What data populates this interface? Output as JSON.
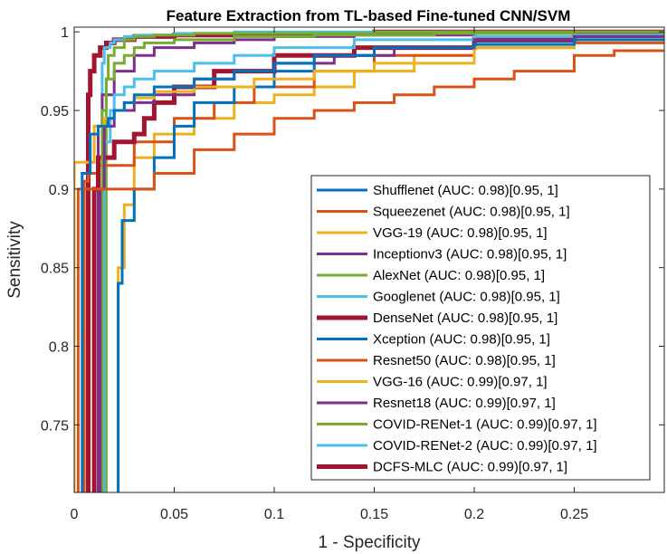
{
  "chart_data": {
    "type": "line",
    "title": "Feature Extraction from TL-based Fine-tuned CNN/SVM",
    "xlabel": "1 - Specificity",
    "ylabel": "Sensitivity",
    "xlim": [
      0,
      0.295
    ],
    "ylim": [
      0.707,
      1.003
    ],
    "xticks": [
      0,
      0.05,
      0.1,
      0.15,
      0.2,
      0.25
    ],
    "xtick_labels": [
      "0",
      "0.05",
      "0.1",
      "0.15",
      "0.2",
      "0.25"
    ],
    "yticks": [
      0.75,
      0.8,
      0.85,
      0.9,
      0.95,
      1
    ],
    "ytick_labels": [
      "0.75",
      "0.8",
      "0.85",
      "0.9",
      "0.95",
      "1"
    ],
    "grid": false,
    "legend_position": "bottom-right",
    "series": [
      {
        "name": "Shufflenet (AUC: 0.98)[0.95, 1]",
        "color": "#0072BD",
        "x": [
          0.004,
          0.008,
          0.012,
          0.017,
          0.02,
          0.025,
          0.03,
          0.04,
          0.06,
          0.08,
          0.1,
          0.12,
          0.15,
          0.2,
          0.25,
          0.295
        ],
        "y": [
          0.707,
          0.91,
          0.935,
          0.94,
          0.945,
          0.95,
          0.955,
          0.96,
          0.965,
          0.97,
          0.975,
          0.98,
          0.985,
          0.99,
          0.992,
          0.995
        ]
      },
      {
        "name": "Squeezenet (AUC: 0.98)[0.95, 1]",
        "color": "#D95319",
        "x": [
          0.002,
          0.002,
          0.04,
          0.06,
          0.08,
          0.1,
          0.12,
          0.14,
          0.16,
          0.18,
          0.2,
          0.22,
          0.25,
          0.27,
          0.295
        ],
        "y": [
          0.707,
          0.9,
          0.9,
          0.91,
          0.925,
          0.935,
          0.945,
          0.95,
          0.955,
          0.96,
          0.965,
          0.97,
          0.975,
          0.985,
          0.988
        ]
      },
      {
        "name": "VGG-19 (AUC: 0.98)[0.95, 1]",
        "color": "#EDB120",
        "x": [
          0,
          0.0,
          0.01,
          0.01,
          0.015,
          0.02,
          0.025,
          0.03,
          0.04,
          0.06,
          0.09,
          0.12,
          0.15,
          0.2,
          0.25,
          0.295
        ],
        "y": [
          0.707,
          0.915,
          0.917,
          0.93,
          0.94,
          0.945,
          0.95,
          0.955,
          0.958,
          0.962,
          0.965,
          0.97,
          0.975,
          0.98,
          0.99,
          0.995
        ]
      },
      {
        "name": "Inceptionv3 (AUC: 0.98)[0.95, 1]",
        "color": "#7E2F8E",
        "x": [
          0.013,
          0.015,
          0.02,
          0.03,
          0.04,
          0.06,
          0.08,
          0.1,
          0.13,
          0.16,
          0.2,
          0.25,
          0.295
        ],
        "y": [
          0.707,
          0.9,
          0.94,
          0.95,
          0.955,
          0.96,
          0.97,
          0.975,
          0.98,
          0.985,
          0.99,
          0.995,
          0.997
        ]
      },
      {
        "name": "AlexNet (AUC: 0.98)[0.95, 1]",
        "color": "#77AC30",
        "x": [
          0.014,
          0.016,
          0.02,
          0.025,
          0.03,
          0.035,
          0.05,
          0.08,
          0.12,
          0.18,
          0.25,
          0.295
        ],
        "y": [
          0.707,
          0.95,
          0.97,
          0.98,
          0.985,
          0.99,
          0.993,
          0.995,
          0.997,
          0.998,
          0.999,
          1.0
        ]
      },
      {
        "name": "Googlenet (AUC: 0.98)[0.95, 1]",
        "color": "#4DBEEE",
        "x": [
          0.015,
          0.018,
          0.02,
          0.025,
          0.03,
          0.04,
          0.06,
          0.08,
          0.1,
          0.14,
          0.2,
          0.25,
          0.295
        ],
        "y": [
          0.707,
          0.93,
          0.95,
          0.96,
          0.965,
          0.97,
          0.975,
          0.98,
          0.985,
          0.99,
          0.995,
          0.997,
          0.998
        ]
      },
      {
        "name": "DenseNet (AUC: 0.98)[0.95, 1]",
        "color": "#A2142F",
        "x": [
          0.01,
          0.012,
          0.02,
          0.03,
          0.035,
          0.04,
          0.05,
          0.07,
          0.1,
          0.14,
          0.2,
          0.25,
          0.295
        ],
        "y": [
          0.707,
          0.9,
          0.92,
          0.93,
          0.935,
          0.945,
          0.955,
          0.965,
          0.975,
          0.985,
          0.99,
          0.995,
          0.998
        ]
      },
      {
        "name": "Xception (AUC: 0.98)[0.95, 1]",
        "color": "#0072BD",
        "x": [
          0.022,
          0.024,
          0.03,
          0.04,
          0.05,
          0.06,
          0.08,
          0.1,
          0.12,
          0.15,
          0.2,
          0.25,
          0.295
        ],
        "y": [
          0.707,
          0.84,
          0.88,
          0.9,
          0.92,
          0.94,
          0.955,
          0.965,
          0.975,
          0.985,
          0.99,
          0.994,
          0.997
        ]
      },
      {
        "name": "Resnet50 (AUC: 0.98)[0.95, 1]",
        "color": "#D95319",
        "x": [
          0.005,
          0.007,
          0.012,
          0.03,
          0.05,
          0.07,
          0.09,
          0.12,
          0.15,
          0.2,
          0.25,
          0.295
        ],
        "y": [
          0.707,
          0.905,
          0.91,
          0.915,
          0.93,
          0.945,
          0.955,
          0.965,
          0.975,
          0.985,
          0.99,
          0.993
        ]
      },
      {
        "name": "VGG-16 (AUC: 0.99)[0.97, 1]",
        "color": "#EDB120",
        "x": [
          0.022,
          0.025,
          0.03,
          0.04,
          0.06,
          0.08,
          0.1,
          0.12,
          0.14,
          0.17,
          0.2,
          0.25,
          0.295
        ],
        "y": [
          0.707,
          0.85,
          0.89,
          0.92,
          0.935,
          0.945,
          0.955,
          0.96,
          0.965,
          0.975,
          0.985,
          0.99,
          0.995
        ]
      },
      {
        "name": "Resnet18 (AUC: 0.99)[0.97, 1]",
        "color": "#7E2F8E",
        "x": [
          0.012,
          0.014,
          0.02,
          0.03,
          0.04,
          0.06,
          0.08,
          0.1,
          0.14,
          0.2,
          0.25,
          0.295
        ],
        "y": [
          0.707,
          0.94,
          0.96,
          0.975,
          0.985,
          0.99,
          0.993,
          0.995,
          0.997,
          0.998,
          0.999,
          1.0
        ]
      },
      {
        "name": "COVID-RENet-1 (AUC: 0.99)[0.97, 1]",
        "color": "#77AC30",
        "x": [
          0.016,
          0.017,
          0.02,
          0.025,
          0.03,
          0.04,
          0.06,
          0.1,
          0.15,
          0.2,
          0.25,
          0.295
        ],
        "y": [
          0.707,
          0.97,
          0.985,
          0.99,
          0.995,
          0.997,
          0.998,
          0.999,
          0.999,
          1.0,
          1.0,
          1.0
        ]
      },
      {
        "name": "COVID-RENet-2 (AUC: 0.99)[0.97, 1]",
        "color": "#4DBEEE",
        "x": [
          0.014,
          0.015,
          0.018,
          0.02,
          0.025,
          0.03,
          0.05,
          0.08,
          0.12,
          0.2,
          0.295
        ],
        "y": [
          0.707,
          0.98,
          0.99,
          0.993,
          0.995,
          0.997,
          0.998,
          0.999,
          1.0,
          1.0,
          1.0
        ]
      },
      {
        "name": "DCFS-MLC (AUC: 0.99)[0.97, 1]",
        "color": "#A2142F",
        "x": [
          0.007,
          0.008,
          0.01,
          0.013,
          0.016,
          0.02,
          0.03,
          0.05,
          0.1,
          0.15,
          0.2,
          0.25,
          0.295
        ],
        "y": [
          0.707,
          0.96,
          0.975,
          0.985,
          0.99,
          0.993,
          0.995,
          0.997,
          0.998,
          0.999,
          1.0,
          1.0,
          1.0
        ]
      }
    ]
  }
}
